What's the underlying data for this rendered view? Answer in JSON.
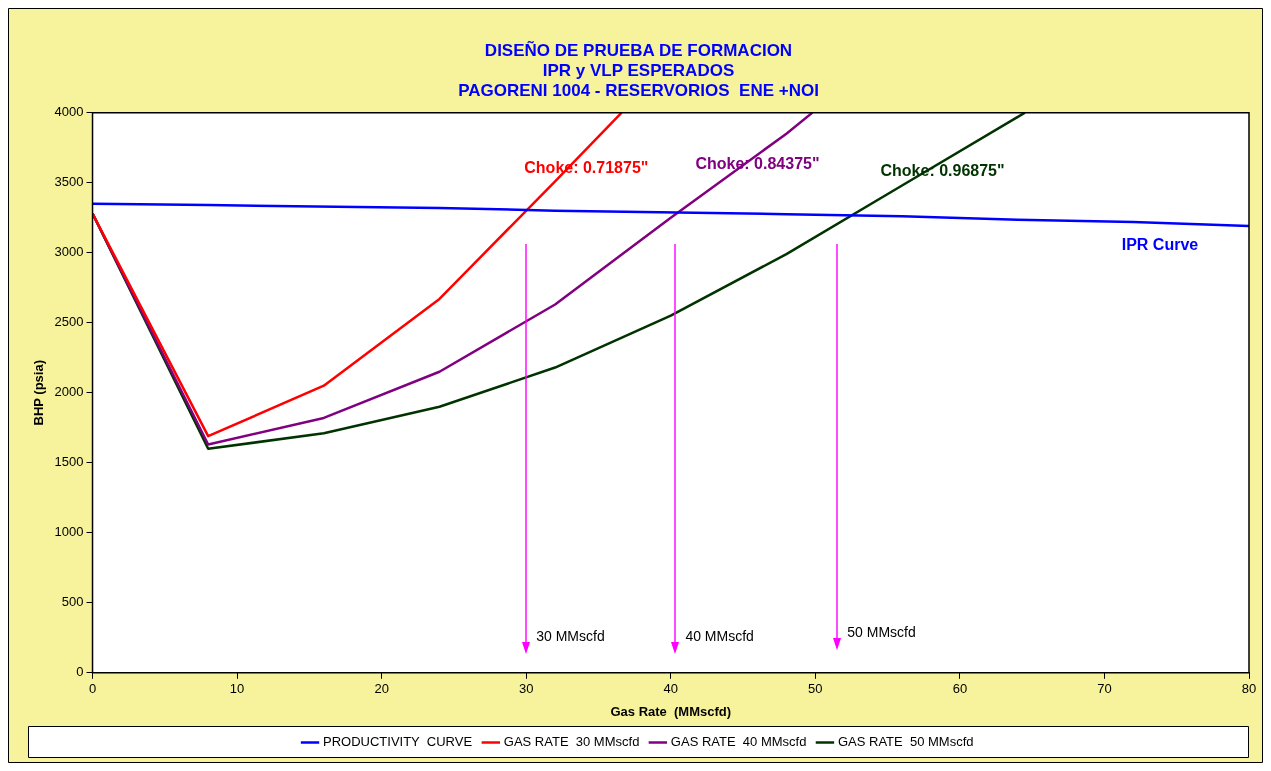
{
  "chart_data": {
    "type": "line",
    "title": "DISEÑO DE PRUEBA DE FORMACION\nIPR y VLP ESPERADOS\nPAGORENI 1004 - RESERVORIOS  ENE +NOI",
    "xlabel": "Gas Rate  (MMscfd)",
    "ylabel": "BHP (psia)",
    "xlim": [
      0,
      80
    ],
    "xticks": [
      0,
      10,
      20,
      30,
      40,
      50,
      60,
      70,
      80
    ],
    "ylim": [
      0,
      4000
    ],
    "yticks": [
      0,
      500,
      1000,
      1500,
      2000,
      2500,
      3000,
      3500,
      4000
    ],
    "legend": "bottom",
    "marker": "none",
    "line_style": "solid",
    "series": [
      {
        "name": "PRODUCTIVITY  CURVE",
        "color": "#0000ff",
        "x": [
          0,
          8,
          24,
          32,
          48,
          56,
          64,
          72,
          80
        ],
        "values": [
          3350,
          3340,
          3320,
          3300,
          3275,
          3260,
          3235,
          3220,
          3190
        ]
      },
      {
        "name": "GAS RATE  30 MMscfd",
        "color": "#ff0000",
        "x": [
          0,
          8,
          16,
          24,
          32,
          36.6
        ],
        "values": [
          3280,
          1690,
          2050,
          2670,
          3510,
          4000
        ]
      },
      {
        "name": "GAS RATE  40 MMscfd",
        "color": "#800080",
        "x": [
          0,
          8,
          16,
          24,
          32,
          40,
          48,
          49.8
        ],
        "values": [
          3280,
          1630,
          1820,
          2150,
          2630,
          3250,
          3850,
          4000
        ]
      },
      {
        "name": "GAS RATE  50 MMscfd",
        "color": "#003300",
        "x": [
          0,
          8,
          16,
          24,
          32,
          40,
          48,
          56,
          64.5
        ],
        "values": [
          3280,
          1600,
          1710,
          1900,
          2180,
          2550,
          2990,
          3480,
          4000
        ]
      }
    ],
    "annotations": [
      "Choke: 0.71875\"",
      "Choke: 0.84375\"",
      "Choke: 0.96875\"",
      "IPR Curve",
      "30 MMscfd",
      "40 MMscfd",
      "50 MMscfd"
    ]
  }
}
